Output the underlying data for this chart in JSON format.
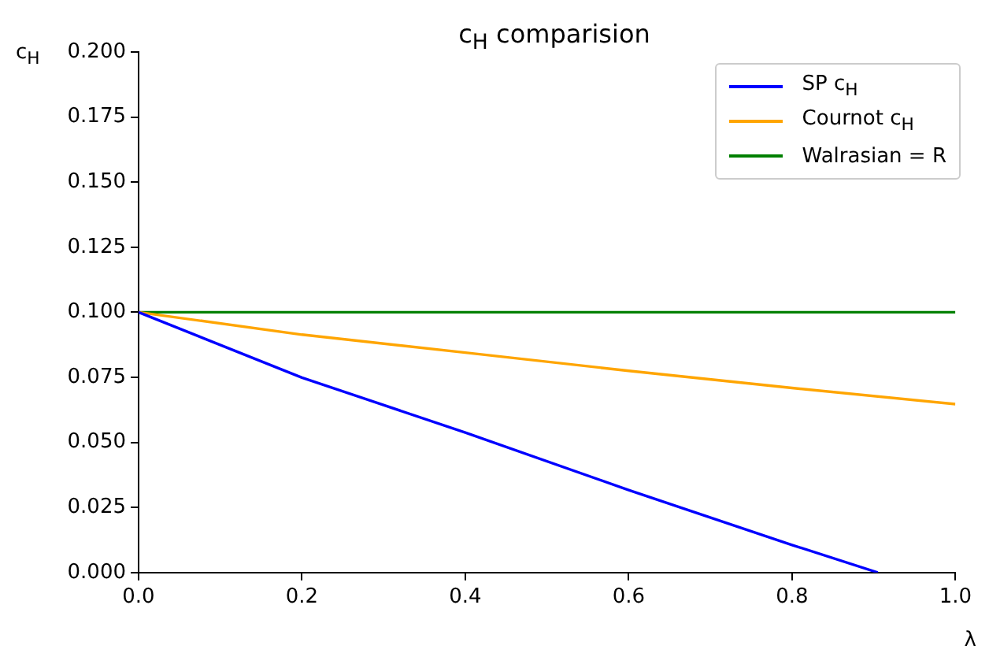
{
  "chart_data": {
    "type": "line",
    "title": "c$_{H}$ comparision",
    "xlabel": "λ",
    "ylabel": "c$_{H}$",
    "xlim": [
      0,
      1
    ],
    "xticks": [
      {
        "value": 0,
        "label": "0.0"
      },
      0.2,
      0.4,
      0.6,
      0.8,
      {
        "value": 1,
        "label": "1.0"
      }
    ],
    "ylim": [
      0,
      0.2
    ],
    "yticks": [
      {
        "value": 0,
        "label": "0.000"
      },
      0.025,
      {
        "value": 0.05,
        "label": "0.050"
      },
      0.075,
      {
        "value": 0.1,
        "label": "0.100"
      },
      0.125,
      {
        "value": 0.15,
        "label": "0.150"
      },
      0.175,
      {
        "value": 0.2,
        "label": "0.200"
      }
    ],
    "legend": "top right",
    "grid": false,
    "series": [
      {
        "name": "SP c$_{H}$",
        "color": "#0000ff",
        "x": [
          0,
          0.2,
          0.4,
          0.6,
          0.8,
          0.905
        ],
        "values": [
          0.1,
          0.0749,
          0.0538,
          0.0317,
          0.0106,
          0
        ]
      },
      {
        "name": "Cournot c$_{H}$",
        "color": "#ffa500",
        "x": [
          0,
          0.2,
          0.4,
          0.6,
          0.8,
          1.0
        ],
        "values": [
          0.1,
          0.0914,
          0.0845,
          0.0775,
          0.0709,
          0.0647
        ]
      },
      {
        "name": "Walrasian = R",
        "color": "#008000",
        "x": [
          0,
          1
        ],
        "values": [
          0.1,
          0.1
        ]
      }
    ]
  }
}
